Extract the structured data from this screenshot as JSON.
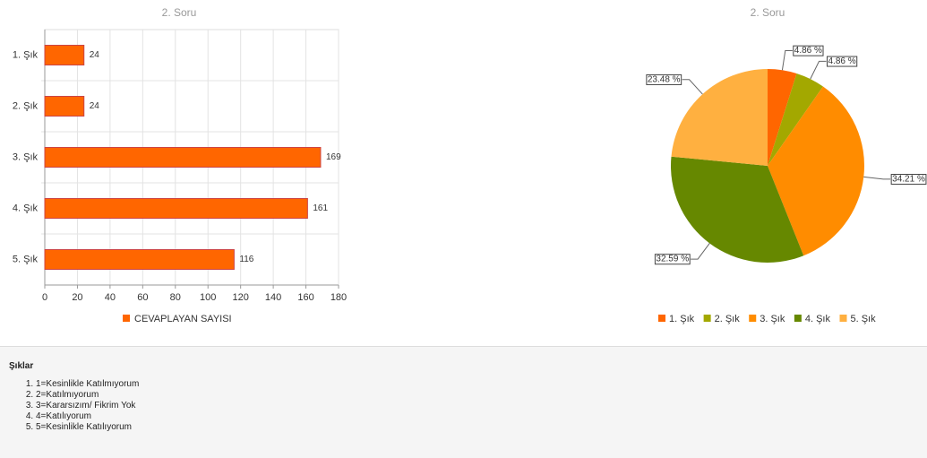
{
  "chart_data": [
    {
      "type": "bar",
      "title": "2. Soru",
      "categories": [
        "1. Şık",
        "2. Şık",
        "3. Şık",
        "4. Şık",
        "5. Şık"
      ],
      "series": [
        {
          "name": "CEVAPLAYAN SAYISI",
          "color": "#ff6600",
          "values": [
            24,
            24,
            169,
            161,
            116
          ]
        }
      ],
      "xlim": [
        0,
        180
      ],
      "xticks": [
        0,
        20,
        40,
        60,
        80,
        100,
        120,
        140,
        160,
        180
      ],
      "grid": true,
      "legend": "bottom"
    },
    {
      "type": "pie",
      "title": "2. Soru",
      "categories": [
        "1. Şık",
        "2. Şık",
        "3. Şık",
        "4. Şık",
        "5. Şık"
      ],
      "values": [
        4.86,
        4.86,
        34.21,
        32.59,
        23.48
      ],
      "value_labels": [
        "4.86 %",
        "4.86 %",
        "34.21 %",
        "32.59 %",
        "23.48 %"
      ],
      "colors": [
        "#ff6600",
        "#a3a800",
        "#ff8c00",
        "#668800",
        "#ffb040"
      ],
      "legend": "bottom"
    }
  ],
  "options": {
    "title": "Şıklar",
    "items": [
      "1=Kesinlikle Katılmıyorum",
      "2=Katılmıyorum",
      "3=Kararsızım/ Fikrim Yok",
      "4=Katılıyorum",
      "5=Kesinlikle Katılıyorum"
    ]
  }
}
